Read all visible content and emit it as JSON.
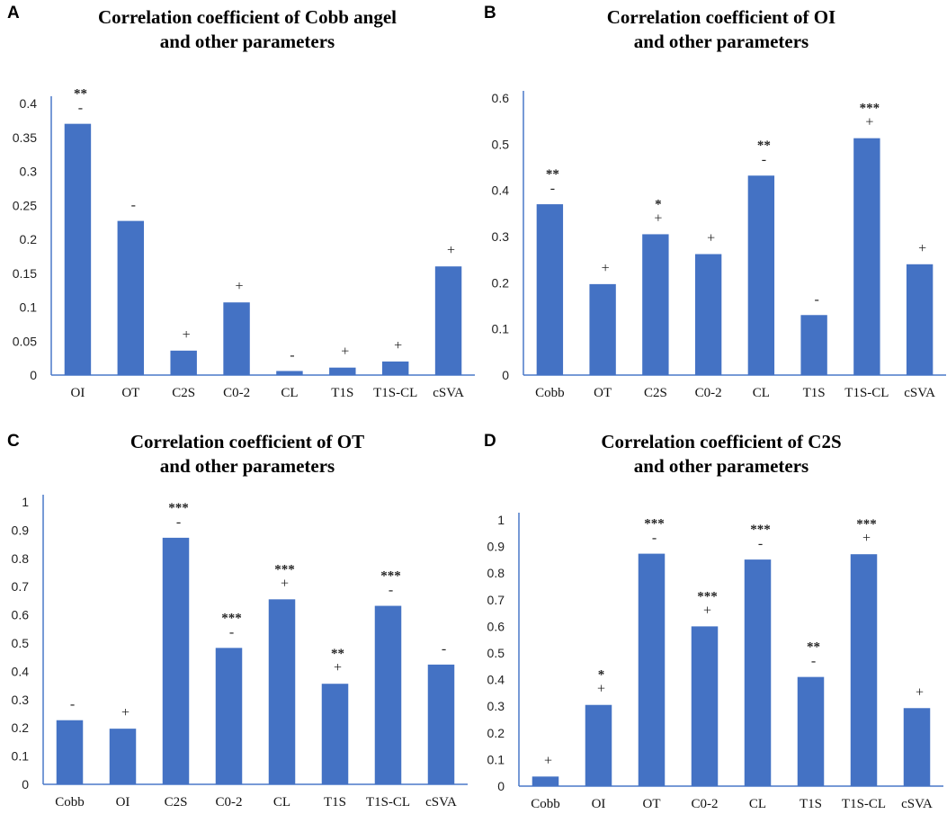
{
  "chart_data": [
    {
      "type": "bar",
      "panel_label": "A",
      "title_line1": "Correlation coefficient of Cobb angel",
      "title_line2": "and other parameters",
      "xlabel": "",
      "ylabel": "",
      "categories": [
        "OI",
        "OT",
        "C2S",
        "C0-2",
        "CL",
        "T1S",
        "T1S-CL",
        "cSVA"
      ],
      "values": [
        0.37,
        0.227,
        0.036,
        0.107,
        0.006,
        0.011,
        0.02,
        0.16
      ],
      "signs": [
        "-",
        "-",
        "+",
        "+",
        "-",
        "+",
        "+",
        "+"
      ],
      "significance": [
        "**",
        "",
        "",
        "",
        "",
        "",
        "",
        ""
      ],
      "ylim": [
        0,
        0.4
      ],
      "yticks": [
        0,
        0.05,
        0.1,
        0.15,
        0.2,
        0.25,
        0.3,
        0.35,
        0.4
      ],
      "ytick_labels": [
        "0",
        "0.05",
        "0.1",
        "0.15",
        "0.2",
        "0.25",
        "0.3",
        "0.35",
        "0.4"
      ],
      "bar_color": "#4472c4"
    },
    {
      "type": "bar",
      "panel_label": "B",
      "title_line1": "Correlation coefficient of OI",
      "title_line2": "and other parameters",
      "xlabel": "",
      "ylabel": "",
      "categories": [
        "Cobb",
        "OT",
        "C2S",
        "C0-2",
        "CL",
        "T1S",
        "T1S-CL",
        "cSVA"
      ],
      "values": [
        0.37,
        0.197,
        0.305,
        0.262,
        0.432,
        0.13,
        0.513,
        0.24
      ],
      "signs": [
        "-",
        "+",
        "+",
        "+",
        "-",
        "-",
        "+",
        "+"
      ],
      "significance": [
        "**",
        "",
        "*",
        "",
        "**",
        "",
        "***",
        ""
      ],
      "ylim": [
        0,
        0.6
      ],
      "yticks": [
        0,
        0.1,
        0.2,
        0.3,
        0.4,
        0.5,
        0.6
      ],
      "ytick_labels": [
        "0",
        "0.1",
        "0.2",
        "0.3",
        "0.4",
        "0.5",
        "0.6"
      ],
      "bar_color": "#4472c4"
    },
    {
      "type": "bar",
      "panel_label": "C",
      "title_line1": "Correlation coefficient of OT",
      "title_line2": "and other parameters",
      "xlabel": "",
      "ylabel": "",
      "categories": [
        "Cobb",
        "OI",
        "C2S",
        "C0-2",
        "CL",
        "T1S",
        "T1S-CL",
        "cSVA"
      ],
      "values": [
        0.227,
        0.197,
        0.873,
        0.483,
        0.655,
        0.356,
        0.632,
        0.424
      ],
      "signs": [
        "-",
        "+",
        "-",
        "-",
        "+",
        "+",
        "-",
        "-"
      ],
      "significance": [
        "",
        "",
        "***",
        "***",
        "***",
        "**",
        "***",
        ""
      ],
      "ylim": [
        0,
        1
      ],
      "yticks": [
        0,
        0.1,
        0.2,
        0.3,
        0.4,
        0.5,
        0.6,
        0.7,
        0.8,
        0.9,
        1
      ],
      "ytick_labels": [
        "0",
        "0.1",
        "0.2",
        "0.3",
        "0.4",
        "0.5",
        "0.6",
        "0.7",
        "0.8",
        "0.9",
        "1"
      ],
      "bar_color": "#4472c4"
    },
    {
      "type": "bar",
      "panel_label": "D",
      "title_line1": "Correlation coefficient of C2S",
      "title_line2": "and other parameters",
      "xlabel": "",
      "ylabel": "",
      "categories": [
        "Cobb",
        "OI",
        "OT",
        "C0-2",
        "CL",
        "T1S",
        "T1S-CL",
        "cSVA"
      ],
      "values": [
        0.036,
        0.305,
        0.873,
        0.6,
        0.851,
        0.41,
        0.871,
        0.293
      ],
      "signs": [
        "+",
        "+",
        "-",
        "+",
        "-",
        "-",
        "+",
        "+"
      ],
      "significance": [
        "",
        "*",
        "***",
        "***",
        "***",
        "**",
        "***",
        ""
      ],
      "ylim": [
        0,
        1
      ],
      "yticks": [
        0,
        0.1,
        0.2,
        0.3,
        0.4,
        0.5,
        0.6,
        0.7,
        0.8,
        0.9,
        1
      ],
      "ytick_labels": [
        "0",
        "0.1",
        "0.2",
        "0.3",
        "0.4",
        "0.5",
        "0.6",
        "0.7",
        "0.8",
        "0.9",
        "1"
      ],
      "bar_color": "#4472c4"
    }
  ]
}
